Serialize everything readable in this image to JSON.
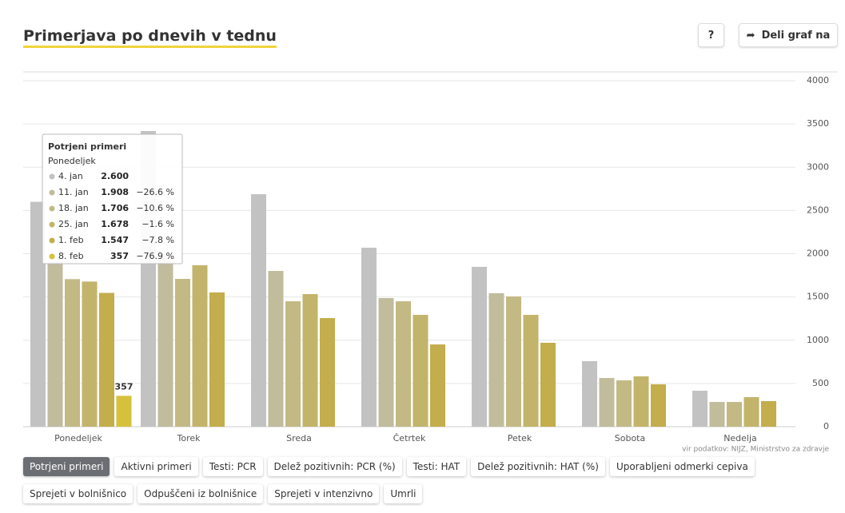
{
  "header": {
    "title": "Primerjava po dnevih v tednu",
    "help": "?",
    "share": "Deli graf na"
  },
  "chart_data": {
    "type": "bar",
    "categories": [
      "Ponedeljek",
      "Torek",
      "Sreda",
      "Četrtek",
      "Petek",
      "Sobota",
      "Nedelja"
    ],
    "series": [
      {
        "name": "4. jan",
        "color": "#c2c2c2",
        "values": [
          2600,
          3418,
          2688,
          2069,
          1848,
          758,
          416
        ],
        "value_labels": [
          "2.600",
          null,
          null,
          null,
          null,
          null,
          null
        ]
      },
      {
        "name": "11. jan",
        "color": "#c0bc9c",
        "values": [
          1908,
          1950,
          1801,
          1487,
          1543,
          563,
          286
        ],
        "value_labels": [
          "1.908",
          null,
          null,
          null,
          null,
          null,
          null
        ]
      },
      {
        "name": "18. jan",
        "color": "#c3b985",
        "values": [
          1706,
          1709,
          1450,
          1450,
          1506,
          536,
          286
        ],
        "value_labels": [
          "1.706",
          null,
          null,
          null,
          null,
          null,
          null
        ]
      },
      {
        "name": "25. jan",
        "color": "#c2b46a",
        "values": [
          1678,
          1866,
          1533,
          1293,
          1293,
          582,
          342
        ],
        "value_labels": [
          "1.678",
          null,
          null,
          null,
          null,
          null,
          null
        ]
      },
      {
        "name": "1. feb",
        "color": "#c3ad4c",
        "values": [
          1547,
          1552,
          1256,
          951,
          970,
          490,
          296
        ],
        "value_labels": [
          "1.547",
          null,
          null,
          null,
          null,
          null,
          null
        ]
      },
      {
        "name": "8. feb",
        "color": "#d6c13c",
        "values": [
          357,
          null,
          null,
          null,
          null,
          null,
          null
        ],
        "value_labels": [
          "357",
          null,
          null,
          null,
          null,
          null,
          null
        ]
      }
    ],
    "ylim": [
      0,
      4000
    ],
    "yticks": [
      0,
      500,
      1000,
      1500,
      2000,
      2500,
      3000,
      3500,
      4000
    ],
    "grid": true,
    "source": "vir podatkov: NIJZ, Ministrstvo za zdravje",
    "tooltip": {
      "title": "Potrjeni primeri",
      "changes": [
        null,
        "−26.6 %",
        "−10.6 %",
        "−1.6 %",
        "−7.8 %",
        "−76.9 %"
      ]
    }
  },
  "tabs": [
    "Potrjeni primeri",
    "Aktivni primeri",
    "Testi: PCR",
    "Delež pozitivnih: PCR (%)",
    "Testi: HAT",
    "Delež pozitivnih: HAT (%)",
    "Uporabljeni odmerki cepiva",
    "Sprejeti v bolnišnico",
    "Odpuščeni iz bolnišnice",
    "Sprejeti v intenzivno",
    "Umrli"
  ]
}
